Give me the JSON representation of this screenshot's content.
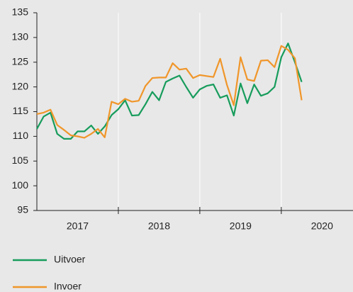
{
  "chart_data": {
    "type": "line",
    "x": [
      2017,
      2017.083,
      2017.167,
      2017.25,
      2017.333,
      2017.417,
      2017.5,
      2017.583,
      2017.667,
      2017.75,
      2017.833,
      2017.917,
      2018,
      2018.083,
      2018.167,
      2018.25,
      2018.333,
      2018.417,
      2018.5,
      2018.583,
      2018.667,
      2018.75,
      2018.833,
      2018.917,
      2019,
      2019.083,
      2019.167,
      2019.25,
      2019.333,
      2019.417,
      2019.5,
      2019.583,
      2019.667,
      2019.75,
      2019.833,
      2019.917,
      2020,
      2020.083,
      2020.167,
      2020.25
    ],
    "series": [
      {
        "name": "Uitvoer",
        "color": "#179c5c",
        "values": [
          111.5,
          114,
          114.8,
          110.5,
          109.5,
          109.5,
          111,
          111,
          112.2,
          110.5,
          112,
          114.3,
          115.5,
          117.3,
          114.2,
          114.3,
          116.5,
          119,
          117.3,
          121,
          121.7,
          122.3,
          120,
          117.8,
          119.5,
          120.2,
          120.5,
          117.8,
          118.3,
          114.2,
          120.7,
          116.7,
          120.5,
          118.2,
          118.7,
          120,
          126,
          128.8,
          125,
          121
        ]
      },
      {
        "name": "Invoer",
        "color": "#f0962a",
        "values": [
          114.5,
          114.8,
          115.4,
          112.3,
          111.3,
          110.2,
          110,
          109.7,
          110.5,
          111.5,
          109.8,
          117,
          116.5,
          117.6,
          117,
          117.2,
          120.2,
          121.8,
          121.9,
          121.9,
          124.8,
          123.5,
          123.7,
          121.8,
          122.4,
          122.2,
          122,
          125.7,
          120.4,
          116.3,
          126,
          121.5,
          121.2,
          125.3,
          125.4,
          124,
          128.3,
          127.5,
          125.8,
          117.3
        ]
      }
    ],
    "xlim": [
      2017,
      2020.88
    ],
    "xticks": [
      {
        "value": 2017.5,
        "label": "2017"
      },
      {
        "value": 2018.5,
        "label": "2018"
      },
      {
        "value": 2019.5,
        "label": "2019"
      },
      {
        "value": 2020.5,
        "label": "2020"
      }
    ],
    "ylim": [
      95,
      135
    ],
    "yticks": [
      95,
      100,
      105,
      110,
      115,
      120,
      125,
      130,
      135
    ]
  }
}
